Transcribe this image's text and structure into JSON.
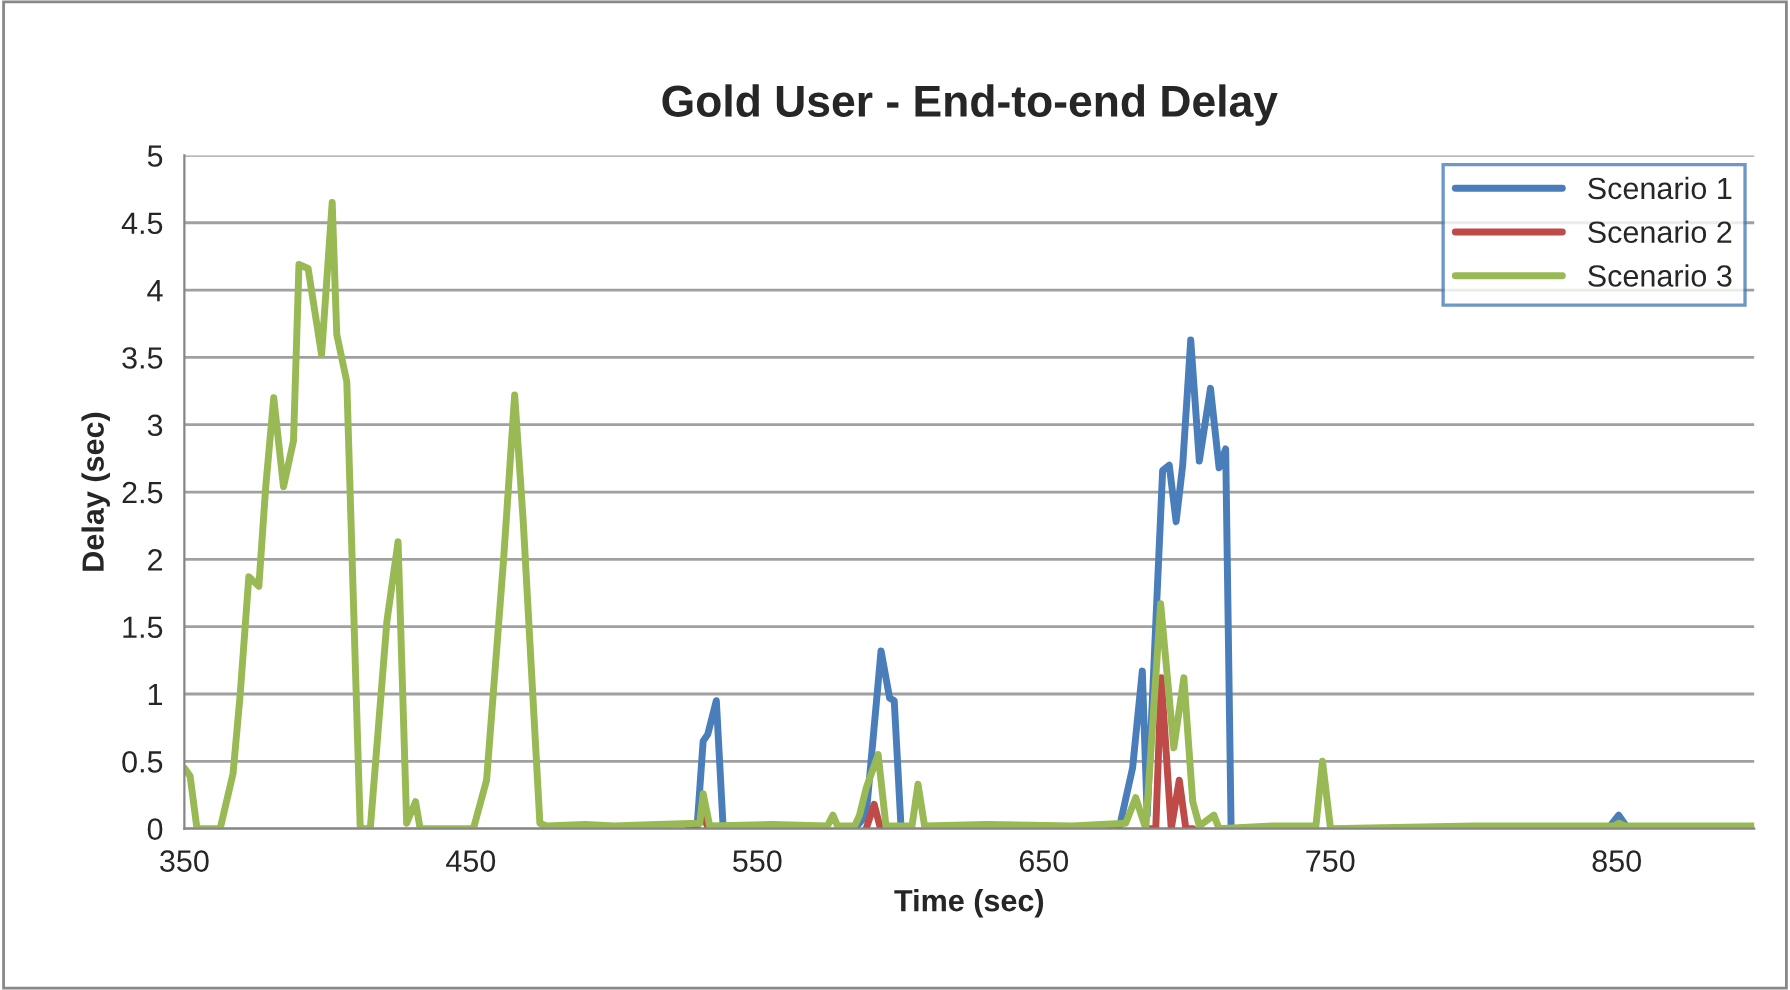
{
  "chart_data": {
    "type": "line",
    "title": "Gold User - End-to-end Delay",
    "xlabel": "Time (sec)",
    "ylabel": "Delay (sec)",
    "xlim": [
      350,
      898
    ],
    "xticks": [
      350,
      450,
      550,
      650,
      750,
      850
    ],
    "ylim": [
      0,
      5
    ],
    "yticks": [
      0,
      0.5,
      1,
      1.5,
      2,
      2.5,
      3,
      3.5,
      4,
      4.5,
      5
    ],
    "grid": "y",
    "legend": "top right",
    "line_style": "solid",
    "marker": "none",
    "series": [
      {
        "name": "Scenario 1",
        "color": "#4a7ebb",
        "x": [
          526,
          529,
          531.1,
          532.7,
          535.7,
          538.1,
          541,
          560,
          584,
          588,
          593.2,
          596.2,
          597.8,
          600.2,
          603,
          640,
          673,
          676.3,
          681,
          684.4,
          686.1,
          691.5,
          693.8,
          696.2,
          698.5,
          701.3,
          704.3,
          708.2,
          711.2,
          713.5,
          715.4,
          719,
          780,
          847,
          850.7,
          854
        ],
        "values": [
          0,
          0.02,
          0.65,
          0.7,
          0.95,
          0,
          0,
          null,
          0,
          0.1,
          1.32,
          0.97,
          0.95,
          0,
          0,
          null,
          0,
          0,
          0.45,
          1.17,
          0.1,
          2.66,
          2.7,
          2.28,
          2.7,
          3.63,
          2.73,
          3.27,
          2.68,
          2.82,
          0,
          0,
          null,
          0,
          0.1,
          0
        ]
      },
      {
        "name": "Scenario 2",
        "color": "#be4b48",
        "x": [
          528,
          531,
          533,
          560,
          588,
          590.8,
          593,
          640,
          686,
          689.1,
          691,
          694.5,
          697.3,
          699.6,
          702
        ],
        "values": [
          0,
          0.1,
          0,
          null,
          0,
          0.18,
          0,
          null,
          0,
          0,
          1.12,
          0,
          0.36,
          0,
          0
        ]
      },
      {
        "name": "Scenario 3",
        "color": "#98b954",
        "x": [
          350,
          352,
          354.4,
          362.5,
          367,
          369.5,
          372.5,
          376,
          378.4,
          381.2,
          384.6,
          388.1,
          390,
          393.2,
          397.9,
          401.6,
          403.2,
          406.7,
          411.4,
          414.9,
          420.7,
          424.6,
          427.6,
          430.7,
          432.3,
          450.9,
          455.5,
          461.4,
          465.3,
          468.3,
          474.1,
          476.4,
          490,
          500,
          515,
          529.9,
          531.1,
          533.4,
          555,
          574.5,
          576.4,
          578,
          584,
          585.7,
          588,
          592.2,
          594.9,
          604,
          606.1,
          608.4,
          630,
          660,
          678.6,
          682.1,
          685.6,
          690.8,
          695.4,
          698.9,
          702,
          704.3,
          709.4,
          711.2,
          730,
          745,
          747.3,
          750.1,
          800,
          849,
          850.7,
          853,
          898
        ],
        "values": [
          0.45,
          0.39,
          0,
          0,
          0.41,
          1.0,
          1.87,
          1.8,
          2.54,
          3.2,
          2.54,
          2.88,
          4.19,
          4.16,
          3.52,
          4.65,
          3.67,
          3.32,
          0,
          0,
          1.54,
          2.13,
          0.04,
          0.2,
          0,
          0,
          0.36,
          1.99,
          3.22,
          2.28,
          0.04,
          0.02,
          0.03,
          0.02,
          0.03,
          0.04,
          0.26,
          0.02,
          0.03,
          0.02,
          0.1,
          0.02,
          0.02,
          0.1,
          0.3,
          0.55,
          0.02,
          0.02,
          0.33,
          0.02,
          0.03,
          0.02,
          0.04,
          0.23,
          0,
          1.67,
          0.6,
          1.12,
          0.2,
          0.02,
          0.1,
          0,
          0.02,
          0.02,
          0.5,
          0,
          0.02,
          0.02,
          0.04,
          0.02,
          0.02
        ]
      }
    ]
  }
}
